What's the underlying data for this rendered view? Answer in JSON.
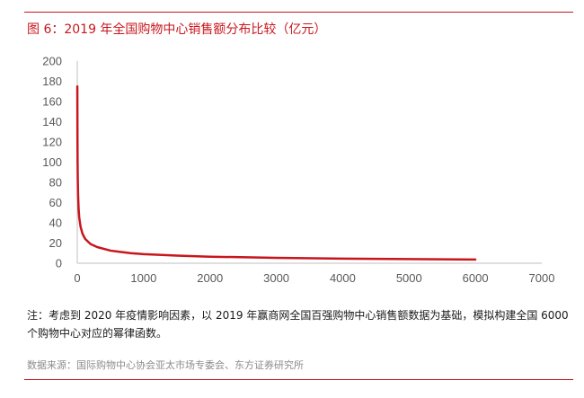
{
  "figure": {
    "title": "图 6：2019 年全国购物中心销售额分布比较（亿元）",
    "note": "注：考虑到 2020 年疫情影响因素，以 2019 年赢商网全国百强购物中心销售额数据为基础，模拟构建全国 6000 个购物中心对应的幂律函数。",
    "source": "数据来源：国际购物中心协会亚太市场专委会、东方证券研究所",
    "accent_color": "#c8161d",
    "line_color": "#c8161d"
  },
  "chart_data": {
    "type": "line",
    "title": "",
    "xlabel": "",
    "ylabel": "",
    "xlim": [
      0,
      7000
    ],
    "ylim": [
      0,
      200
    ],
    "x_ticks": [
      0,
      1000,
      2000,
      3000,
      4000,
      5000,
      6000,
      7000
    ],
    "y_ticks": [
      0,
      20,
      40,
      60,
      80,
      100,
      120,
      140,
      160,
      180,
      200
    ],
    "grid": false,
    "series": [
      {
        "x": [
          1,
          2,
          3,
          5,
          8,
          12,
          20,
          30,
          50,
          80,
          120,
          200,
          300,
          500,
          800,
          1000,
          1500,
          2000,
          3000,
          4000,
          5000,
          6000
        ],
        "values": [
          175,
          150,
          125,
          100,
          82,
          68,
          54,
          45,
          36,
          29,
          24,
          19,
          16,
          12.5,
          10,
          9,
          7.5,
          6.5,
          5.3,
          4.6,
          4.1,
          3.7
        ]
      }
    ]
  }
}
